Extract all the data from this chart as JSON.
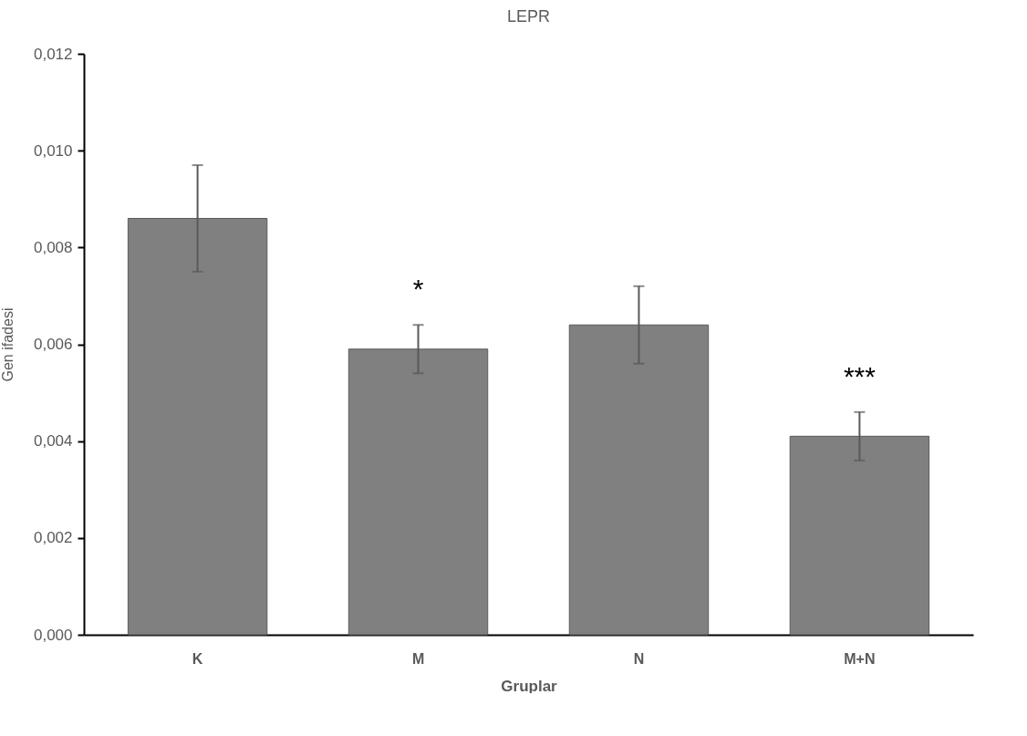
{
  "chart_data": {
    "type": "bar",
    "title": "LEPR",
    "xlabel": "Gruplar",
    "ylabel": "Gen ifadesi",
    "categories": [
      "K",
      "M",
      "N",
      "M+N"
    ],
    "values": [
      0.0086,
      0.0059,
      0.0064,
      0.0041
    ],
    "errors": [
      0.0011,
      0.0005,
      0.0008,
      0.0005
    ],
    "color": "#808080",
    "ylim": [
      0,
      0.012
    ],
    "yticks": [
      {
        "value": 0,
        "label": "0,000"
      },
      {
        "value": 0.002,
        "label": "0,002"
      },
      {
        "value": 0.004,
        "label": "0,004"
      },
      {
        "value": 0.006,
        "label": "0,006"
      },
      {
        "value": 0.008,
        "label": "0,008"
      },
      {
        "value": 0.01,
        "label": "0,010"
      },
      {
        "value": 0.012,
        "label": "0,012"
      }
    ],
    "grid": false,
    "annotations": [
      "*",
      "***"
    ]
  }
}
